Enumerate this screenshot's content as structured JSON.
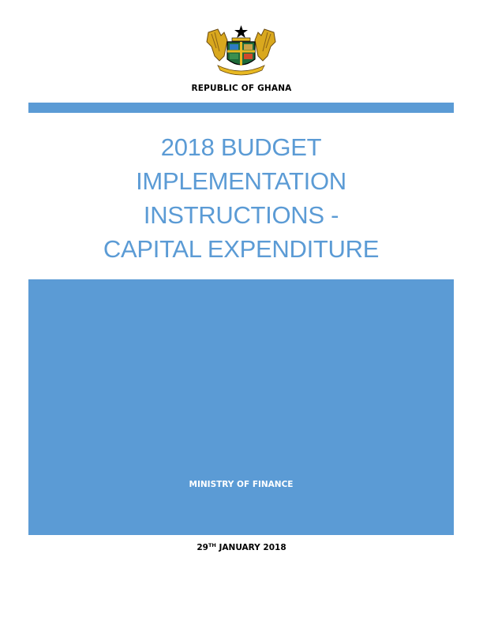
{
  "header": {
    "country": "REPUBLIC OF GHANA",
    "emblem_icon": "ghana-coat-of-arms-icon"
  },
  "title": {
    "lines": [
      "2018 BUDGET",
      "IMPLEMENTATION",
      "INSTRUCTIONS -",
      "CAPITAL EXPENDITURE"
    ]
  },
  "panel": {
    "ministry": "MINISTRY OF FINANCE"
  },
  "date": {
    "day": "29",
    "suffix": "TH",
    "rest": " JANUARY 2018"
  },
  "colors": {
    "accent_blue": "#5b9bd5",
    "gold": "#e8b923",
    "text_black": "#000000"
  }
}
